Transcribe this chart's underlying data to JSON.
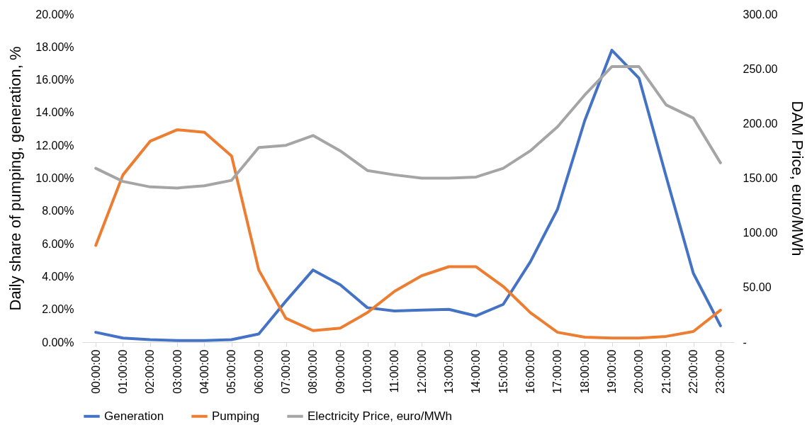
{
  "chart_data": {
    "type": "line",
    "ylabel": "Daily share of pumping, generation, %",
    "y2label": "DAM Price, euro/MWh",
    "categories": [
      "00:00:00",
      "01:00:00",
      "02:00:00",
      "03:00:00",
      "04:00:00",
      "05:00:00",
      "06:00:00",
      "07:00:00",
      "08:00:00",
      "09:00:00",
      "10:00:00",
      "11:00:00",
      "12:00:00",
      "13:00:00",
      "14:00:00",
      "15:00:00",
      "16:00:00",
      "17:00:00",
      "18:00:00",
      "19:00:00",
      "20:00:00",
      "21:00:00",
      "22:00:00",
      "23:00:00"
    ],
    "series": [
      {
        "name": "Generation",
        "color": "#4472c4",
        "values": [
          0.6,
          0.25,
          0.15,
          0.1,
          0.1,
          0.15,
          0.5,
          2.5,
          4.4,
          3.5,
          2.1,
          1.9,
          1.95,
          2.0,
          1.6,
          2.3,
          4.9,
          8.1,
          13.5,
          17.8,
          16.1,
          10.1,
          4.2,
          1.0
        ]
      },
      {
        "name": "Pumping",
        "color": "#ed7d31",
        "values": [
          5.9,
          10.2,
          12.25,
          12.95,
          12.8,
          11.35,
          4.4,
          1.45,
          0.7,
          0.85,
          1.8,
          3.1,
          4.05,
          4.6,
          4.6,
          3.4,
          1.8,
          0.6,
          0.3,
          0.25,
          0.25,
          0.35,
          0.65,
          1.95
        ]
      },
      {
        "name": "Electricity Price, euro/MWh",
        "color": "#a5a5a5",
        "axis": "y2",
        "values": [
          159,
          147,
          142,
          141,
          143,
          148,
          178,
          180,
          189,
          175,
          157,
          153,
          150,
          150,
          151,
          159,
          175,
          197,
          226,
          252,
          252,
          217,
          205,
          164
        ]
      }
    ],
    "ylim": [
      0,
      20
    ],
    "yticks": [
      {
        "value": 0,
        "label": "0.00%"
      },
      {
        "value": 2,
        "label": "2.00%"
      },
      {
        "value": 4,
        "label": "4.00%"
      },
      {
        "value": 6,
        "label": "6.00%"
      },
      {
        "value": 8,
        "label": "8.00%"
      },
      {
        "value": 10,
        "label": "10.00%"
      },
      {
        "value": 12,
        "label": "12.00%"
      },
      {
        "value": 14,
        "label": "14.00%"
      },
      {
        "value": 16,
        "label": "16.00%"
      },
      {
        "value": 18,
        "label": "18.00%"
      },
      {
        "value": 20,
        "label": "20.00%"
      }
    ],
    "y2lim": [
      0,
      300
    ],
    "y2ticks": [
      {
        "value": 0,
        "label": "-"
      },
      {
        "value": 50,
        "label": "50.00"
      },
      {
        "value": 100,
        "label": "100.00"
      },
      {
        "value": 150,
        "label": "150.00"
      },
      {
        "value": 200,
        "label": "200.00"
      },
      {
        "value": 250,
        "label": "250.00"
      },
      {
        "value": 300,
        "label": "300.00"
      }
    ],
    "legend": "bottom",
    "marker": "none",
    "line_style": "solid"
  }
}
